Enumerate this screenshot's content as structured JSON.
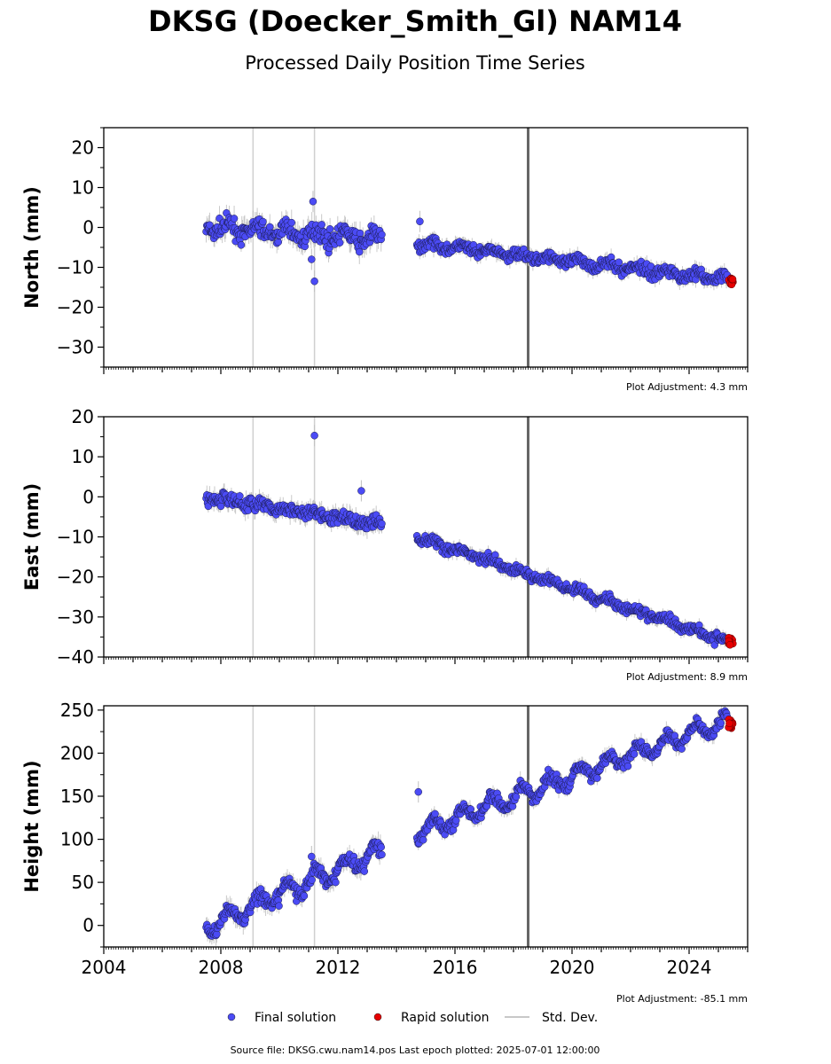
{
  "title": "DKSG (Doecker_Smith_Gl) NAM14",
  "subtitle": "Processed Daily Position Time Series",
  "source_note": "Source file: DKSG.cwu.nam14.pos  Last epoch plotted: 2025-07-01 12:00:00",
  "colors": {
    "final": "#4b4bf5",
    "rapid": "#e60000",
    "stddev": "#c8c8c8",
    "event_light": "#d0d0d0",
    "event_dark": "#666666"
  },
  "legend": {
    "placement": "bottom-center",
    "items": [
      {
        "label": "Final solution",
        "marker": "dot",
        "color": "#4b4bf5"
      },
      {
        "label": "Rapid solution",
        "marker": "dot",
        "color": "#e60000"
      },
      {
        "label": "Std. Dev.",
        "marker": "line",
        "color": "#c8c8c8"
      }
    ]
  },
  "chart_data": [
    {
      "type": "scatter",
      "ylabel": "North (mm)",
      "adjustment": "Plot Adjustment: 4.3 mm",
      "xlim": [
        2004,
        2026
      ],
      "ylim": [
        -35,
        25
      ],
      "yticks": [
        -30,
        -20,
        -10,
        0,
        10,
        20
      ],
      "event_lines": [
        {
          "x": 2009.1,
          "style": "light"
        },
        {
          "x": 2011.2,
          "style": "light"
        },
        {
          "x": 2018.5,
          "style": "dark"
        }
      ],
      "segments": [
        {
          "x": [
            2007.5,
            2013.5
          ],
          "y": [
            0,
            -3
          ],
          "noise": 1.5,
          "wave": 1.2
        },
        {
          "x": [
            2014.7,
            2025.3
          ],
          "y": [
            -4,
            -13
          ],
          "noise": 1.0,
          "wave": 0.8
        }
      ],
      "outliers": [
        [
          2011.15,
          6.5
        ],
        [
          2011.2,
          -13.5
        ],
        [
          2011.1,
          -8
        ],
        [
          2014.8,
          1.5
        ]
      ],
      "rapid": {
        "x": [
          2025.35,
          2025.5
        ],
        "y": [
          -12.5,
          -14.5
        ]
      },
      "x_tick_labels": []
    },
    {
      "type": "scatter",
      "ylabel": "East (mm)",
      "adjustment": "Plot Adjustment: 8.9 mm",
      "xlim": [
        2004,
        2026
      ],
      "ylim": [
        -40,
        20
      ],
      "yticks": [
        -40,
        -30,
        -20,
        -10,
        0,
        10,
        20
      ],
      "event_lines": [
        {
          "x": 2009.1,
          "style": "light"
        },
        {
          "x": 2011.2,
          "style": "light"
        },
        {
          "x": 2018.5,
          "style": "dark"
        }
      ],
      "segments": [
        {
          "x": [
            2007.5,
            2013.5
          ],
          "y": [
            0,
            -7
          ],
          "noise": 1.2,
          "wave": 0.6
        },
        {
          "x": [
            2014.7,
            2025.3
          ],
          "y": [
            -10,
            -36
          ],
          "noise": 0.9,
          "wave": 0.5
        }
      ],
      "outliers": [
        [
          2011.2,
          15.3
        ],
        [
          2012.8,
          1.5
        ]
      ],
      "rapid": {
        "x": [
          2025.35,
          2025.5
        ],
        "y": [
          -35,
          -37
        ]
      },
      "x_tick_labels": []
    },
    {
      "type": "scatter",
      "ylabel": "Height (mm)",
      "adjustment": "Plot Adjustment: -85.1 mm",
      "xlim": [
        2004,
        2026
      ],
      "ylim": [
        -25,
        255
      ],
      "yticks": [
        0,
        50,
        100,
        150,
        200,
        250
      ],
      "event_lines": [
        {
          "x": 2009.1,
          "style": "light"
        },
        {
          "x": 2011.2,
          "style": "light"
        },
        {
          "x": 2018.5,
          "style": "dark"
        }
      ],
      "segments": [
        {
          "x": [
            2007.5,
            2013.5
          ],
          "y": [
            -2,
            88
          ],
          "noise": 6,
          "wave": 10
        },
        {
          "x": [
            2014.7,
            2025.3
          ],
          "y": [
            108,
            238
          ],
          "noise": 5,
          "wave": 9
        }
      ],
      "outliers": [
        [
          2014.75,
          155
        ],
        [
          2011.1,
          80
        ]
      ],
      "rapid": {
        "x": [
          2025.35,
          2025.5
        ],
        "y": [
          228,
          240
        ]
      },
      "x_tick_labels": [
        "2004",
        "2008",
        "2012",
        "2016",
        "2020",
        "2024"
      ]
    }
  ]
}
